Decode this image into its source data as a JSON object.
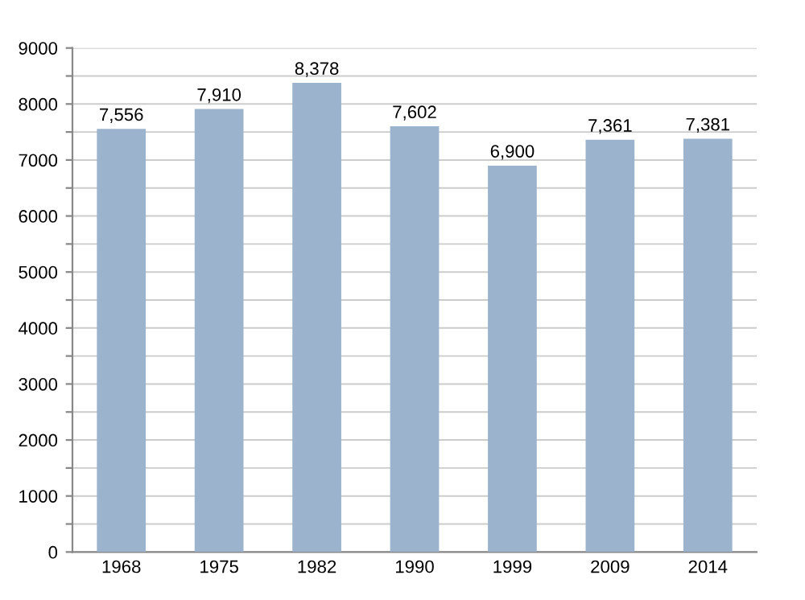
{
  "chart_data": {
    "type": "bar",
    "categories": [
      "1968",
      "1975",
      "1982",
      "1990",
      "1999",
      "2009",
      "2014"
    ],
    "values": [
      7556,
      7910,
      8378,
      7602,
      6900,
      7361,
      7381
    ],
    "value_labels": [
      "7,556",
      "7,910",
      "8,378",
      "7,602",
      "6,900",
      "7,361",
      "7,381"
    ],
    "color": "#9bb3cc",
    "ylim": [
      0,
      9000
    ],
    "yticks": [
      0,
      {
        "value": 500,
        "label": null
      },
      1000,
      {
        "value": 1500,
        "label": null
      },
      2000,
      {
        "value": 2500,
        "label": null
      },
      3000,
      {
        "value": 3500,
        "label": null
      },
      4000,
      {
        "value": 4500,
        "label": null
      },
      5000,
      {
        "value": 5500,
        "label": null
      },
      6000,
      {
        "value": 6500,
        "label": null
      },
      7000,
      {
        "value": 7500,
        "label": null
      },
      8000,
      {
        "value": 8500,
        "label": null
      },
      9000
    ],
    "grid": "y"
  }
}
